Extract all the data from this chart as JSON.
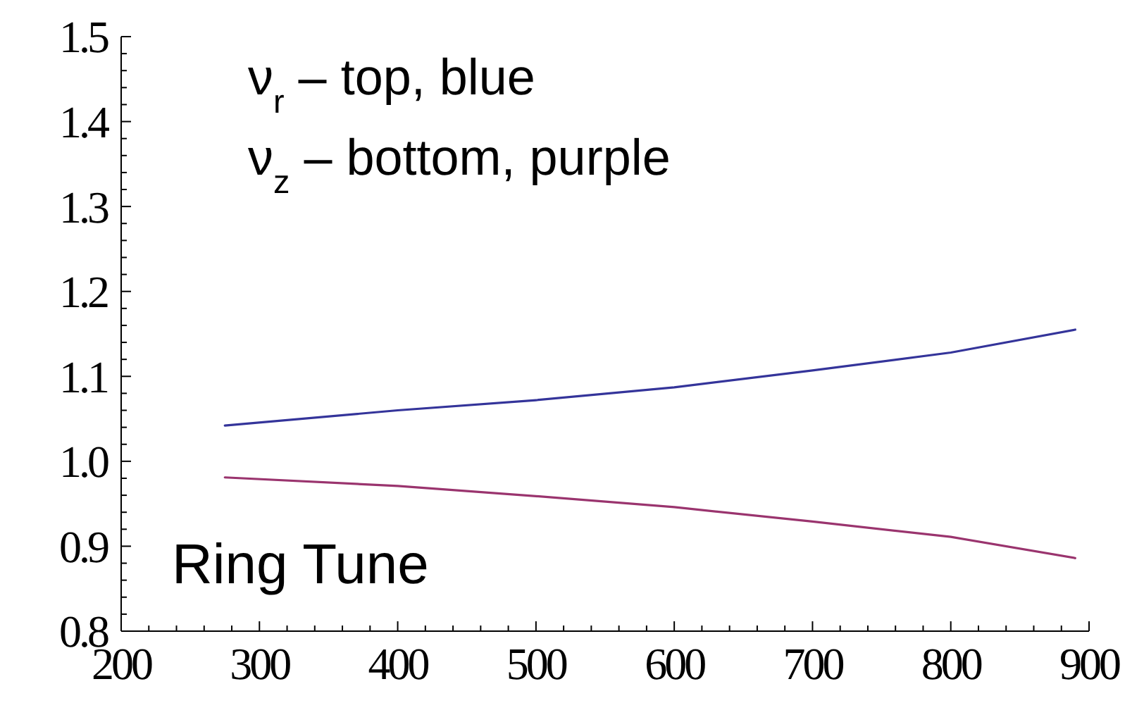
{
  "chart_data": {
    "type": "line",
    "x": [
      275,
      400,
      500,
      600,
      700,
      800,
      890
    ],
    "series": [
      {
        "color": "#34349a",
        "values": [
          1.042,
          1.06,
          1.072,
          1.087,
          1.107,
          1.128,
          1.155
        ]
      },
      {
        "color": "#9a346e",
        "values": [
          0.981,
          0.971,
          0.959,
          0.946,
          0.929,
          0.911,
          0.886
        ]
      }
    ],
    "xlim": [
      200,
      900
    ],
    "ylim": [
      0.8,
      1.5
    ],
    "xticks": [
      200,
      {
        "value": 220,
        "label": null
      },
      {
        "value": 240,
        "label": null
      },
      {
        "value": 260,
        "label": null
      },
      {
        "value": 280,
        "label": null
      },
      300,
      {
        "value": 320,
        "label": null
      },
      {
        "value": 340,
        "label": null
      },
      {
        "value": 360,
        "label": null
      },
      {
        "value": 380,
        "label": null
      },
      400,
      {
        "value": 420,
        "label": null
      },
      {
        "value": 440,
        "label": null
      },
      {
        "value": 460,
        "label": null
      },
      {
        "value": 480,
        "label": null
      },
      500,
      {
        "value": 520,
        "label": null
      },
      {
        "value": 540,
        "label": null
      },
      {
        "value": 560,
        "label": null
      },
      {
        "value": 580,
        "label": null
      },
      600,
      {
        "value": 620,
        "label": null
      },
      {
        "value": 640,
        "label": null
      },
      {
        "value": 660,
        "label": null
      },
      {
        "value": 680,
        "label": null
      },
      700,
      {
        "value": 720,
        "label": null
      },
      {
        "value": 740,
        "label": null
      },
      {
        "value": 760,
        "label": null
      },
      {
        "value": 780,
        "label": null
      },
      800,
      {
        "value": 820,
        "label": null
      },
      {
        "value": 840,
        "label": null
      },
      {
        "value": 860,
        "label": null
      },
      {
        "value": 880,
        "label": null
      },
      900
    ],
    "yticks": [
      0.8,
      {
        "value": 0.82,
        "label": null
      },
      {
        "value": 0.84,
        "label": null
      },
      {
        "value": 0.86,
        "label": null
      },
      {
        "value": 0.88,
        "label": null
      },
      0.9,
      {
        "value": 0.92,
        "label": null
      },
      {
        "value": 0.94,
        "label": null
      },
      {
        "value": 0.96,
        "label": null
      },
      {
        "value": 0.98,
        "label": null
      },
      {
        "value": 1.0,
        "label": "1.0"
      },
      {
        "value": 1.02,
        "label": null
      },
      {
        "value": 1.04,
        "label": null
      },
      {
        "value": 1.06,
        "label": null
      },
      {
        "value": 1.08,
        "label": null
      },
      1.1,
      {
        "value": 1.12,
        "label": null
      },
      {
        "value": 1.14,
        "label": null
      },
      {
        "value": 1.16,
        "label": null
      },
      {
        "value": 1.18,
        "label": null
      },
      1.2,
      {
        "value": 1.22,
        "label": null
      },
      {
        "value": 1.24,
        "label": null
      },
      {
        "value": 1.26,
        "label": null
      },
      {
        "value": 1.28,
        "label": null
      },
      1.3,
      {
        "value": 1.32,
        "label": null
      },
      {
        "value": 1.34,
        "label": null
      },
      {
        "value": 1.36,
        "label": null
      },
      {
        "value": 1.38,
        "label": null
      },
      1.4,
      {
        "value": 1.42,
        "label": null
      },
      {
        "value": 1.44,
        "label": null
      },
      {
        "value": 1.46,
        "label": null
      },
      {
        "value": 1.48,
        "label": null
      },
      1.5
    ],
    "annotations": [
      "ν$_{r}$ – top, blue",
      "ν$_{z}$ – bottom, purple",
      "Ring Tune"
    ],
    "grid": false,
    "marker": "none",
    "line_style": "solid"
  }
}
